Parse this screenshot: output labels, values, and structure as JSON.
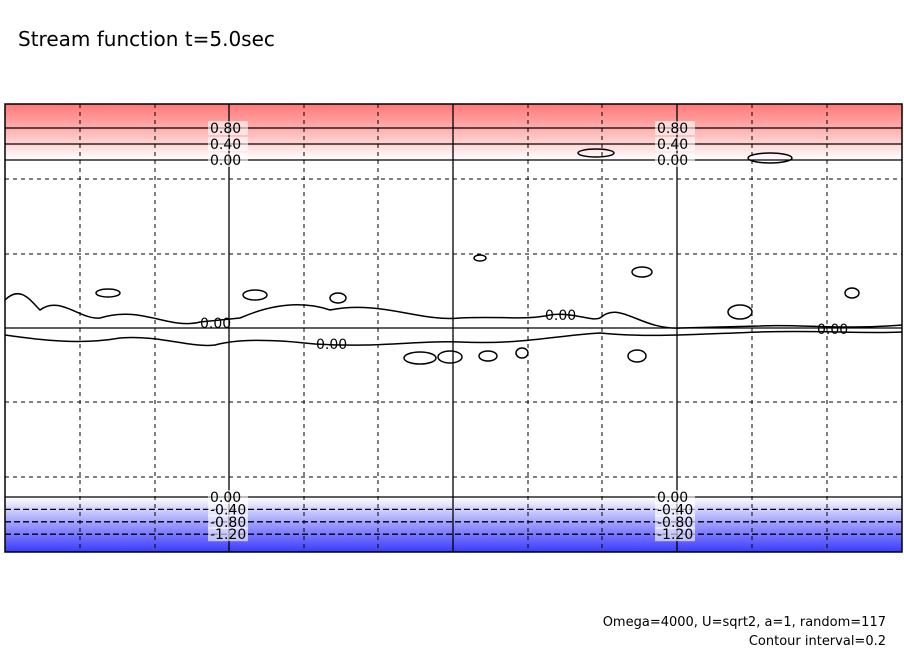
{
  "chart_data": {
    "type": "contour",
    "title": "Stream function t=5.0sec",
    "levels": [
      {
        "value": 0.8,
        "label": "0.80"
      },
      {
        "value": 0.4,
        "label": "0.40"
      },
      {
        "value": 0,
        "label": "0.00"
      },
      {
        "value": -0.4,
        "label": "-0.40"
      },
      {
        "value": -0.8,
        "label": "-0.80"
      },
      {
        "value": -1.2,
        "label": "-1.20"
      }
    ],
    "annotations": [
      "Omega=4000, U=sqrt2, a=1, random=117",
      "Contour interval=0.2"
    ]
  }
}
